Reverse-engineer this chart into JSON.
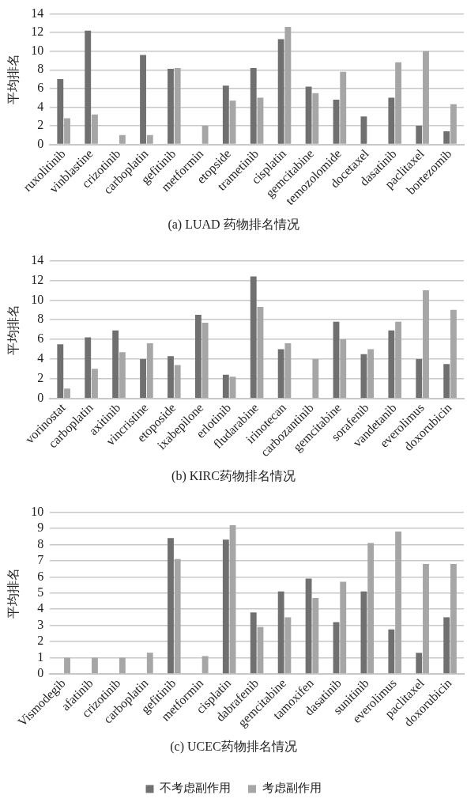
{
  "chart_data": [
    {
      "type": "bar",
      "title": "(a) LUAD 药物排名情况",
      "ylabel": "平均排名",
      "categories": [
        "ruxolitinib",
        "vinblastine",
        "crizotinib",
        "carboplatin",
        "gefitinib",
        "metformin",
        "etopside",
        "trametinib",
        "cisplatin",
        "gemcitabine",
        "temozolomide",
        "docetaxel",
        "dasatinib",
        "paclitaxel",
        "bortezomib"
      ],
      "series": [
        {
          "color": "#707070",
          "values": [
            7.0,
            12.2,
            null,
            9.6,
            8.1,
            null,
            6.3,
            8.2,
            11.3,
            6.2,
            4.8,
            3.0,
            5.0,
            2.0,
            1.4
          ]
        },
        {
          "color": "#a6a6a6",
          "values": [
            2.8,
            3.2,
            1.0,
            1.0,
            8.2,
            2.0,
            4.7,
            5.0,
            12.6,
            5.5,
            7.8,
            null,
            8.8,
            10.0,
            4.3
          ]
        }
      ],
      "ylim": [
        0,
        14
      ],
      "yticks": [
        0,
        2,
        4,
        6,
        8,
        10,
        12,
        14
      ],
      "grid": "y",
      "legend": false
    },
    {
      "type": "bar",
      "title": "(b) KIRC药物排名情况",
      "ylabel": "平均排名",
      "categories": [
        "vorinostat",
        "carboplatin",
        "axitinib",
        "vincristine",
        "etoposide",
        "ixabepilone",
        "erlotinib",
        "fludarabine",
        "irinotecan",
        "carbozantinib",
        "gemcitabine",
        "sorafenib",
        "vandetanib",
        "everolimus",
        "doxorubicin"
      ],
      "series": [
        {
          "color": "#707070",
          "values": [
            5.5,
            6.2,
            6.9,
            4.0,
            4.3,
            8.5,
            2.4,
            12.4,
            5.0,
            null,
            7.8,
            4.5,
            6.9,
            4.0,
            3.5
          ]
        },
        {
          "color": "#a6a6a6",
          "values": [
            1.0,
            3.0,
            4.7,
            5.6,
            3.4,
            7.7,
            2.2,
            9.3,
            5.6,
            4.0,
            6.0,
            5.0,
            7.8,
            11.0,
            9.0
          ]
        }
      ],
      "ylim": [
        0,
        14
      ],
      "yticks": [
        0,
        2,
        4,
        6,
        8,
        10,
        12,
        14
      ],
      "grid": "y",
      "legend": false
    },
    {
      "type": "bar",
      "title": "(c) UCEC药物排名情况",
      "ylabel": "平均排名",
      "categories": [
        "Vismodegib",
        "afatinib",
        "crizotinib",
        "carboplatin",
        "gefitinib",
        "metformin",
        "cisplatin",
        "dabrafenib",
        "gemcitabine",
        "tamoxifen",
        "dasatinib",
        "sunitinib",
        "everolimus",
        "paclitaxel",
        "doxorubicin"
      ],
      "series": [
        {
          "name": "不考虑副作用",
          "color": "#707070",
          "values": [
            null,
            null,
            null,
            null,
            8.4,
            null,
            8.3,
            3.8,
            5.1,
            5.9,
            3.2,
            5.1,
            2.75,
            1.3,
            3.5
          ]
        },
        {
          "name": "考虑副作用",
          "color": "#a6a6a6",
          "values": [
            1.0,
            1.0,
            1.0,
            1.3,
            7.1,
            1.1,
            9.2,
            2.9,
            3.5,
            4.7,
            5.7,
            8.1,
            8.8,
            6.8,
            6.8
          ]
        }
      ],
      "ylim": [
        0,
        10
      ],
      "yticks": [
        0,
        1,
        2,
        3,
        4,
        5,
        6,
        7,
        8,
        9,
        10
      ],
      "grid": "y",
      "legend": "bottom"
    }
  ]
}
